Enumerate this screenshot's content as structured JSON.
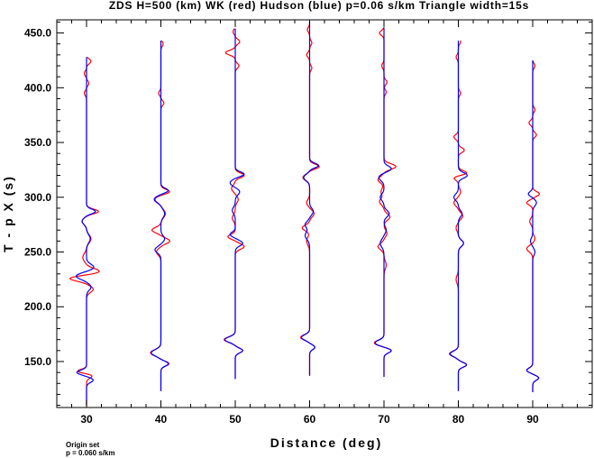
{
  "chart_data": {
    "type": "line",
    "title": "ZDS H=500 (km) WK (red) Hudson (blue) p=0.06 s/km Triangle width=15s",
    "xlabel": "Distance (deg)",
    "ylabel": "T - p X  (s)",
    "xlim": [
      26,
      98
    ],
    "ylim": [
      108,
      462
    ],
    "x_ticks": [
      30,
      40,
      50,
      60,
      70,
      80,
      90
    ],
    "x_tick_labels": [
      "30",
      "40",
      "50",
      "60",
      "70",
      "80",
      "90"
    ],
    "y_ticks": [
      150,
      200,
      250,
      300,
      350,
      400,
      450
    ],
    "y_tick_labels": [
      "150.0",
      "200.0",
      "250.0",
      "300.0",
      "350.0",
      "400.0",
      "450.0"
    ],
    "grid": false,
    "series": [
      {
        "name": "WK",
        "color": "#ff0000"
      },
      {
        "name": "Hudson",
        "color": "#0000ff"
      }
    ],
    "traces": [
      {
        "distance": 30,
        "start": 110,
        "end": 428,
        "red_wiggles": [
          [
            137,
            0.8,
            3
          ],
          [
            141,
            -1.3,
            2.5
          ],
          [
            216,
            0.9,
            4
          ],
          [
            226,
            -2.4,
            3.5
          ],
          [
            232,
            1.8,
            4
          ],
          [
            245,
            -0.5,
            5
          ],
          [
            262,
            0.6,
            5
          ],
          [
            278,
            -0.6,
            4
          ],
          [
            287,
            1.6,
            3
          ],
          [
            395,
            -0.3,
            3
          ],
          [
            404,
            0.3,
            3
          ],
          [
            413,
            -0.3,
            3
          ],
          [
            424,
            0.6,
            3
          ]
        ],
        "blue_wiggles": [
          [
            133,
            0.9,
            3
          ],
          [
            140,
            -1.3,
            3
          ],
          [
            218,
            0.6,
            4
          ],
          [
            228,
            -1.4,
            4
          ],
          [
            236,
            1.0,
            4
          ],
          [
            262,
            0.5,
            5
          ],
          [
            278,
            -0.6,
            4
          ],
          [
            287,
            1.2,
            3
          ]
        ]
      },
      {
        "distance": 40,
        "start": 123,
        "end": 443,
        "red_wiggles": [
          [
            148,
            1.1,
            3
          ],
          [
            158,
            -1.4,
            4
          ],
          [
            250,
            -0.6,
            4
          ],
          [
            260,
            1.2,
            3.5
          ],
          [
            270,
            -1.2,
            3.5
          ],
          [
            285,
            0.6,
            5
          ],
          [
            298,
            -0.8,
            4
          ],
          [
            305,
            1.2,
            3
          ],
          [
            386,
            0.4,
            3
          ],
          [
            395,
            -0.3,
            3
          ],
          [
            440,
            0.3,
            3
          ]
        ],
        "blue_wiggles": [
          [
            148,
            1.0,
            3
          ],
          [
            158,
            -1.3,
            4
          ],
          [
            252,
            -0.8,
            4
          ],
          [
            262,
            0.5,
            4
          ],
          [
            285,
            0.5,
            5
          ],
          [
            298,
            -0.9,
            4
          ],
          [
            306,
            1.0,
            3
          ]
        ]
      },
      {
        "distance": 50,
        "start": 134,
        "end": 454,
        "red_wiggles": [
          [
            160,
            1.0,
            3
          ],
          [
            170,
            -1.5,
            3.5
          ],
          [
            255,
            1.2,
            3.5
          ],
          [
            264,
            -1.0,
            3
          ],
          [
            281,
            -0.4,
            4
          ],
          [
            298,
            0.4,
            4
          ],
          [
            308,
            -0.5,
            4
          ],
          [
            320,
            1.2,
            3
          ],
          [
            420,
            0.5,
            3
          ],
          [
            432,
            -1.3,
            3
          ],
          [
            442,
            0.6,
            3
          ],
          [
            451,
            -0.3,
            3
          ]
        ],
        "blue_wiggles": [
          [
            160,
            1.0,
            3
          ],
          [
            170,
            -1.4,
            3.5
          ],
          [
            258,
            1.0,
            3.5
          ],
          [
            266,
            -0.7,
            3
          ],
          [
            288,
            -0.4,
            4
          ],
          [
            305,
            0.6,
            4
          ],
          [
            313,
            -0.7,
            4
          ],
          [
            321,
            1.2,
            3
          ]
        ]
      },
      {
        "distance": 60,
        "start": 137,
        "end": 460,
        "red_wiggles": [
          [
            163,
            0.7,
            3
          ],
          [
            172,
            -1.2,
            3.5
          ],
          [
            260,
            -0.4,
            5
          ],
          [
            272,
            -1.0,
            3.5
          ],
          [
            285,
            0.6,
            4
          ],
          [
            295,
            -0.4,
            4
          ],
          [
            318,
            -0.9,
            4
          ],
          [
            328,
            1.3,
            3
          ],
          [
            418,
            0.3,
            3
          ],
          [
            430,
            -0.4,
            3
          ],
          [
            441,
            0.3,
            3
          ],
          [
            453,
            -0.3,
            3
          ]
        ],
        "blue_wiggles": [
          [
            163,
            0.7,
            3
          ],
          [
            172,
            -1.1,
            3.5
          ],
          [
            265,
            -0.6,
            5
          ],
          [
            275,
            -0.6,
            4
          ],
          [
            287,
            0.5,
            4
          ],
          [
            318,
            -0.8,
            4
          ],
          [
            329,
            1.2,
            3
          ]
        ]
      },
      {
        "distance": 70,
        "start": 136,
        "end": 455,
        "red_wiggles": [
          [
            160,
            1.0,
            3
          ],
          [
            167,
            -1.3,
            3.5
          ],
          [
            238,
            0.3,
            5
          ],
          [
            255,
            -0.8,
            4
          ],
          [
            267,
            0.4,
            4
          ],
          [
            282,
            0.8,
            4
          ],
          [
            296,
            -0.6,
            4
          ],
          [
            305,
            -0.4,
            4
          ],
          [
            316,
            -0.8,
            4
          ],
          [
            328,
            1.6,
            3.5
          ],
          [
            396,
            0.3,
            3
          ],
          [
            405,
            0.4,
            3
          ],
          [
            420,
            -0.3,
            3
          ],
          [
            450,
            -0.6,
            3
          ]
        ],
        "blue_wiggles": [
          [
            160,
            1.0,
            3
          ],
          [
            167,
            -1.2,
            3.5
          ],
          [
            258,
            -0.5,
            5
          ],
          [
            270,
            0.3,
            4
          ],
          [
            285,
            0.7,
            4
          ],
          [
            300,
            -0.5,
            4
          ],
          [
            318,
            -0.7,
            4
          ],
          [
            326,
            1.0,
            3.5
          ]
        ]
      },
      {
        "distance": 80,
        "start": 123,
        "end": 443,
        "red_wiggles": [
          [
            147,
            1.1,
            3
          ],
          [
            157,
            -1.2,
            3.5
          ],
          [
            225,
            -0.3,
            5
          ],
          [
            258,
            0.7,
            4
          ],
          [
            272,
            -0.3,
            4
          ],
          [
            283,
            0.6,
            4
          ],
          [
            295,
            -0.6,
            4
          ],
          [
            305,
            0.3,
            4
          ],
          [
            318,
            -0.7,
            3
          ],
          [
            322,
            1.2,
            3
          ],
          [
            343,
            0.8,
            3
          ],
          [
            355,
            -0.6,
            3
          ],
          [
            395,
            0.3,
            3
          ],
          [
            428,
            -0.3,
            3
          ],
          [
            442,
            0.3,
            3
          ]
        ],
        "blue_wiggles": [
          [
            147,
            1.1,
            3
          ],
          [
            157,
            -1.1,
            3.5
          ],
          [
            258,
            0.7,
            4
          ],
          [
            285,
            0.5,
            4
          ],
          [
            300,
            -0.6,
            4
          ],
          [
            320,
            1.2,
            3.5
          ]
        ]
      },
      {
        "distance": 90,
        "start": 122,
        "end": 425,
        "red_wiggles": [
          [
            135,
            0.8,
            3
          ],
          [
            142,
            -0.8,
            3
          ],
          [
            253,
            -0.8,
            4
          ],
          [
            262,
            0.3,
            4
          ],
          [
            278,
            -0.4,
            4
          ],
          [
            295,
            -0.8,
            3
          ],
          [
            303,
            0.9,
            3
          ],
          [
            357,
            0.5,
            3
          ],
          [
            368,
            -0.5,
            3
          ],
          [
            380,
            0.3,
            3
          ],
          [
            420,
            0.3,
            3
          ]
        ],
        "blue_wiggles": [
          [
            135,
            0.8,
            3
          ],
          [
            142,
            -0.8,
            3
          ],
          [
            250,
            0.3,
            4
          ],
          [
            260,
            -0.3,
            4
          ],
          [
            295,
            0.5,
            4
          ],
          [
            303,
            -0.6,
            3
          ]
        ]
      }
    ]
  },
  "footnote": {
    "line1": "Origin set",
    "line2": "p = 0.060 s/km"
  }
}
